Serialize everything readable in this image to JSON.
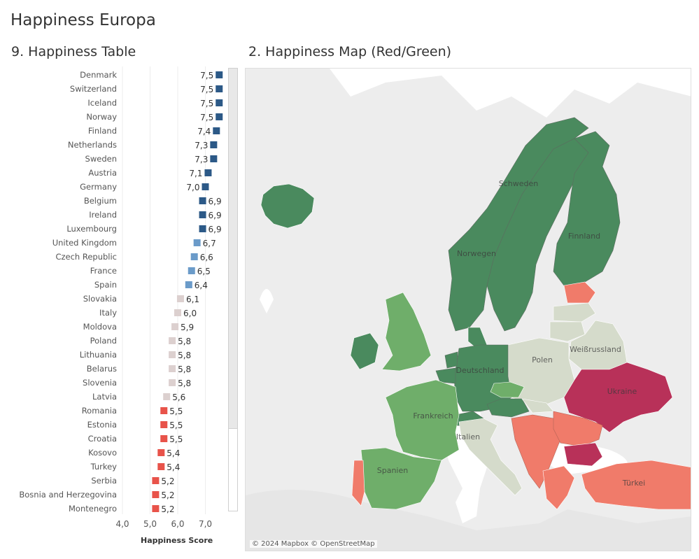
{
  "dashboard_title": "Happiness Europa",
  "table_sheet": {
    "title": "9. Happiness Table",
    "axis_title": "Happiness Score",
    "axis_ticks": [
      "4,0",
      "5,0",
      "6,0",
      "7,0"
    ]
  },
  "map_sheet": {
    "title": "2. Happiness Map (Red/Green)",
    "attribution": "© 2024 Mapbox © OpenStreetMap",
    "labels": [
      "Schweden",
      "Finnland",
      "Norwegen",
      "Deutschland",
      "Polen",
      "Weißrussland",
      "Ukraine",
      "Frankreich",
      "Italien",
      "Spanien",
      "Türkei"
    ],
    "colors": {
      "dark_green": "#4a8a5e",
      "light_green": "#6fae6a",
      "gray_green": "#d5dbcb",
      "salmon": "#f07b6a",
      "crimson": "#b83159",
      "land": "#ededed",
      "sea": "#ffffff"
    }
  },
  "colors": {
    "bar_dark_blue": "#2c5987",
    "bar_light_blue": "#6b9bc9",
    "bar_pale": "#dcd0cf",
    "bar_red": "#e8534a"
  },
  "chart_data": {
    "type": "bar",
    "orientation": "horizontal",
    "xlabel": "Happiness Score",
    "xlim": [
      4.0,
      7.8
    ],
    "categories": [
      "Denmark",
      "Switzerland",
      "Iceland",
      "Norway",
      "Finland",
      "Netherlands",
      "Sweden",
      "Austria",
      "Germany",
      "Belgium",
      "Ireland",
      "Luxembourg",
      "United Kingdom",
      "Czech Republic",
      "France",
      "Spain",
      "Slovakia",
      "Italy",
      "Moldova",
      "Poland",
      "Lithuania",
      "Belarus",
      "Slovenia",
      "Latvia",
      "Romania",
      "Estonia",
      "Croatia",
      "Kosovo",
      "Turkey",
      "Serbia",
      "Bosnia and Herzegovina",
      "Montenegro"
    ],
    "values": [
      7.5,
      7.5,
      7.5,
      7.5,
      7.4,
      7.3,
      7.3,
      7.1,
      7.0,
      6.9,
      6.9,
      6.9,
      6.7,
      6.6,
      6.5,
      6.4,
      6.1,
      6.0,
      5.9,
      5.8,
      5.8,
      5.8,
      5.8,
      5.6,
      5.5,
      5.5,
      5.5,
      5.4,
      5.4,
      5.2,
      5.2,
      5.2
    ],
    "value_labels": [
      "7,5",
      "7,5",
      "7,5",
      "7,5",
      "7,4",
      "7,3",
      "7,3",
      "7,1",
      "7,0",
      "6,9",
      "6,9",
      "6,9",
      "6,7",
      "6,6",
      "6,5",
      "6,4",
      "6,1",
      "6,0",
      "5,9",
      "5,8",
      "5,8",
      "5,8",
      "5,8",
      "5,6",
      "5,5",
      "5,5",
      "5,5",
      "5,4",
      "5,4",
      "5,2",
      "5,2",
      "5,2"
    ],
    "color_groups": [
      "dark_blue",
      "dark_blue",
      "dark_blue",
      "dark_blue",
      "dark_blue",
      "dark_blue",
      "dark_blue",
      "dark_blue",
      "dark_blue",
      "dark_blue",
      "dark_blue",
      "dark_blue",
      "light_blue",
      "light_blue",
      "light_blue",
      "light_blue",
      "pale",
      "pale",
      "pale",
      "pale",
      "pale",
      "pale",
      "pale",
      "pale",
      "red",
      "red",
      "red",
      "red",
      "red",
      "red",
      "red",
      "red"
    ],
    "grid": true
  }
}
